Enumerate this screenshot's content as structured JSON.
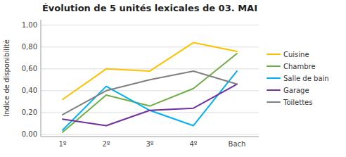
{
  "chart_data": {
    "type": "line",
    "title": "Évolution de 5 unités lexicales de 03. MAI",
    "ylabel": "Indice de disponibilité",
    "categories": [
      "1º",
      "2º",
      "3º",
      "4º",
      "Bach"
    ],
    "series": [
      {
        "name": "Cuisine",
        "color": "#FFC000",
        "values": [
          0.32,
          0.6,
          0.58,
          0.84,
          0.76
        ]
      },
      {
        "name": "Chambre",
        "color": "#70AD47",
        "values": [
          0.02,
          0.36,
          0.26,
          0.42,
          0.74
        ]
      },
      {
        "name": "Salle de bain",
        "color": "#00B0F0",
        "values": [
          0.04,
          0.44,
          0.22,
          0.08,
          0.58
        ]
      },
      {
        "name": "Garage",
        "color": "#7030A0",
        "values": [
          0.14,
          0.08,
          0.22,
          0.24,
          0.46
        ]
      },
      {
        "name": "Toilettes",
        "color": "#808080",
        "values": [
          0.18,
          0.4,
          0.5,
          0.58,
          0.46
        ]
      }
    ],
    "ylim": [
      -0.02,
      1.05
    ],
    "yticks": [
      {
        "value": 0.0,
        "label": "0,00"
      },
      {
        "value": 0.2,
        "label": "0,20"
      },
      {
        "value": 0.4,
        "label": "0,40"
      },
      {
        "value": 0.6,
        "label": "0,60"
      },
      {
        "value": 0.8,
        "label": "0,80"
      },
      {
        "value": 1.0,
        "label": "1,00"
      }
    ],
    "grid": true,
    "legend": "right"
  }
}
